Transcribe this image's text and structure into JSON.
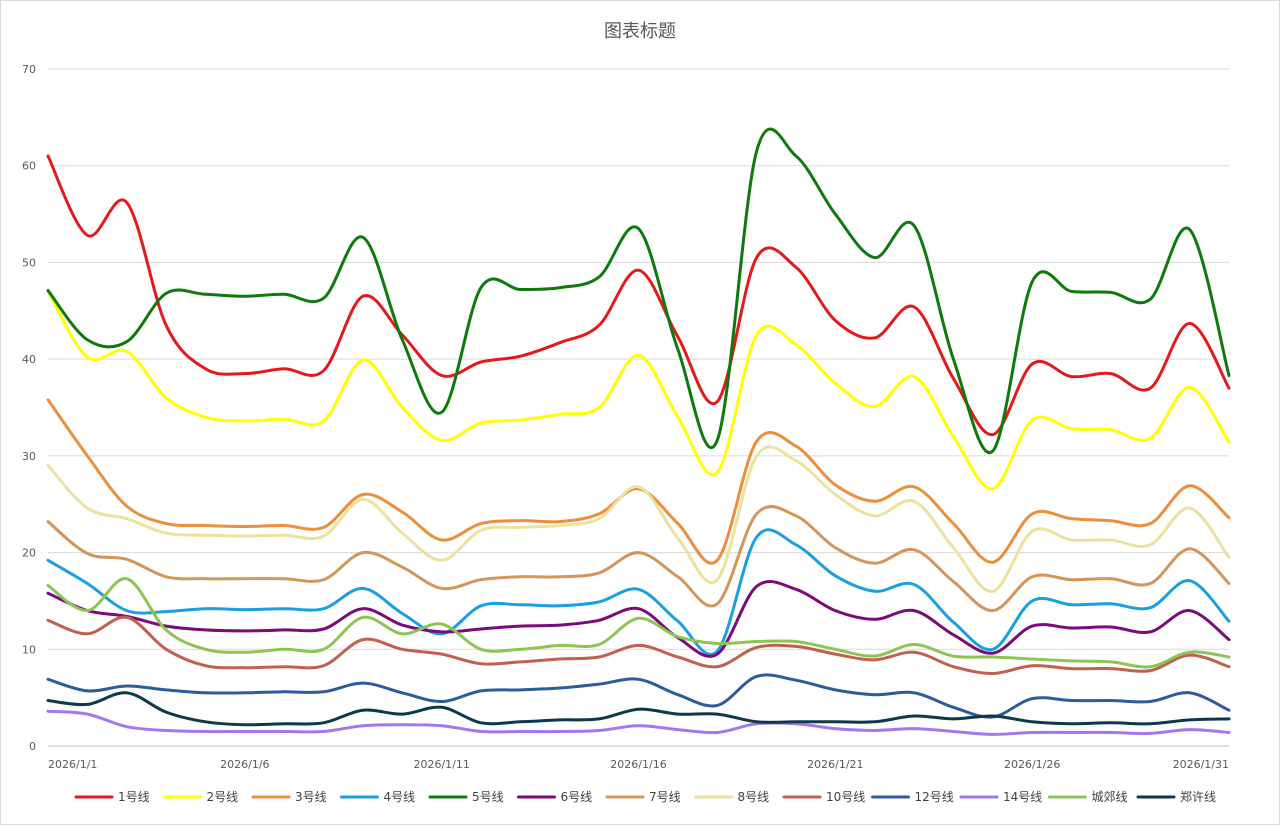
{
  "chart_data": {
    "type": "line",
    "title": "图表标题",
    "xlabel": "",
    "ylabel": "",
    "ylim": [
      0,
      70
    ],
    "yticks": [
      0,
      10,
      20,
      30,
      40,
      50,
      60,
      70
    ],
    "grid": true,
    "legend_position": "bottom",
    "smooth": true,
    "x": [
      "2026/1/1",
      "2026/1/2",
      "2026/1/3",
      "2026/1/4",
      "2026/1/5",
      "2026/1/6",
      "2026/1/7",
      "2026/1/8",
      "2026/1/9",
      "2026/1/10",
      "2026/1/11",
      "2026/1/12",
      "2026/1/13",
      "2026/1/14",
      "2026/1/15",
      "2026/1/16",
      "2026/1/17",
      "2026/1/18",
      "2026/1/19",
      "2026/1/20",
      "2026/1/21",
      "2026/1/22",
      "2026/1/23",
      "2026/1/24",
      "2026/1/25",
      "2026/1/26",
      "2026/1/27",
      "2026/1/28",
      "2026/1/29",
      "2026/1/30",
      "2026/1/31"
    ],
    "x_tick_labels": [
      "2026/1/1",
      "2026/1/6",
      "2026/1/11",
      "2026/1/16",
      "2026/1/21",
      "2026/1/26",
      "2026/1/31"
    ],
    "series": [
      {
        "name": "1号线",
        "color": "#e31a1c",
        "values": [
          61.0,
          52.8,
          56.2,
          43.5,
          39.0,
          38.5,
          39.0,
          38.8,
          46.5,
          42.5,
          38.3,
          39.7,
          40.3,
          41.7,
          43.5,
          49.2,
          42.3,
          35.6,
          50.5,
          49.5,
          44.0,
          42.2,
          45.4,
          38.0,
          32.2,
          39.5,
          38.2,
          38.5,
          37.0,
          43.7,
          37.0
        ]
      },
      {
        "name": "2号线",
        "color": "#ffff00",
        "values": [
          47.0,
          40.2,
          40.8,
          36.0,
          34.0,
          33.6,
          33.8,
          33.6,
          39.9,
          35.0,
          31.6,
          33.4,
          33.7,
          34.3,
          35.0,
          40.4,
          34.0,
          28.3,
          42.5,
          41.5,
          37.5,
          35.1,
          38.2,
          32.0,
          26.6,
          33.7,
          32.8,
          32.7,
          31.8,
          37.1,
          31.4
        ]
      },
      {
        "name": "3号线",
        "color": "#ed8e3a",
        "values": [
          35.8,
          30.0,
          24.8,
          23.0,
          22.8,
          22.7,
          22.8,
          22.6,
          26.0,
          24.2,
          21.3,
          23.0,
          23.3,
          23.2,
          24.0,
          26.6,
          23.0,
          19.2,
          31.5,
          31.0,
          27.0,
          25.3,
          26.8,
          23.0,
          19.0,
          24.0,
          23.5,
          23.3,
          23.0,
          26.9,
          23.6
        ]
      },
      {
        "name": "4号线",
        "color": "#1aa0e0",
        "values": [
          19.2,
          16.8,
          14.0,
          13.9,
          14.2,
          14.1,
          14.2,
          14.2,
          16.3,
          13.7,
          11.6,
          14.5,
          14.6,
          14.5,
          14.9,
          16.2,
          12.9,
          9.8,
          21.6,
          20.8,
          17.6,
          16.0,
          16.7,
          12.8,
          10.0,
          15.0,
          14.6,
          14.7,
          14.3,
          17.1,
          12.9
        ]
      },
      {
        "name": "5号线",
        "color": "#0e7a0e",
        "values": [
          47.1,
          42.0,
          41.8,
          46.8,
          46.7,
          46.5,
          46.7,
          46.3,
          52.6,
          42.0,
          34.5,
          47.4,
          47.2,
          47.4,
          48.5,
          53.5,
          41.0,
          31.6,
          61.5,
          61.0,
          55.0,
          50.5,
          53.8,
          40.0,
          30.5,
          48.0,
          47.0,
          46.9,
          46.2,
          53.4,
          38.3
        ]
      },
      {
        "name": "6号线",
        "color": "#7b0a7b",
        "values": [
          15.8,
          14.0,
          13.4,
          12.4,
          12.0,
          11.9,
          12.0,
          12.1,
          14.2,
          12.5,
          11.8,
          12.1,
          12.4,
          12.5,
          13.0,
          14.2,
          11.2,
          9.5,
          16.5,
          16.2,
          14.0,
          13.1,
          14.0,
          11.5,
          9.6,
          12.4,
          12.2,
          12.3,
          11.8,
          14.0,
          11.0
        ]
      },
      {
        "name": "7号线",
        "color": "#d4955a",
        "values": [
          23.2,
          19.9,
          19.3,
          17.5,
          17.3,
          17.3,
          17.3,
          17.2,
          20.0,
          18.5,
          16.3,
          17.2,
          17.5,
          17.5,
          17.9,
          20.0,
          17.5,
          14.7,
          24.0,
          23.8,
          20.5,
          18.9,
          20.3,
          17.0,
          14.0,
          17.5,
          17.2,
          17.3,
          16.8,
          20.4,
          16.8
        ]
      },
      {
        "name": "8号线",
        "color": "#ece29f",
        "values": [
          29.0,
          24.6,
          23.5,
          22.0,
          21.8,
          21.7,
          21.8,
          21.7,
          25.5,
          22.0,
          19.2,
          22.3,
          22.6,
          22.8,
          23.5,
          26.8,
          21.5,
          17.2,
          30.0,
          29.5,
          26.0,
          23.8,
          25.3,
          20.5,
          16.0,
          22.2,
          21.3,
          21.3,
          20.8,
          24.6,
          19.5
        ]
      },
      {
        "name": "10号线",
        "color": "#c0604d",
        "values": [
          13.0,
          11.6,
          13.3,
          10.0,
          8.3,
          8.1,
          8.2,
          8.3,
          11.0,
          10.0,
          9.5,
          8.5,
          8.7,
          9.0,
          9.2,
          10.4,
          9.2,
          8.2,
          10.2,
          10.3,
          9.5,
          8.9,
          9.7,
          8.2,
          7.5,
          8.3,
          8.0,
          8.0,
          7.8,
          9.4,
          8.2
        ]
      },
      {
        "name": "12号线",
        "color": "#2b5d9c",
        "values": [
          6.9,
          5.7,
          6.2,
          5.8,
          5.5,
          5.5,
          5.6,
          5.6,
          6.5,
          5.5,
          4.6,
          5.7,
          5.8,
          6.0,
          6.4,
          6.9,
          5.3,
          4.2,
          7.2,
          6.8,
          5.8,
          5.3,
          5.5,
          4.0,
          3.0,
          4.9,
          4.7,
          4.7,
          4.6,
          5.5,
          3.7
        ]
      },
      {
        "name": "14号线",
        "color": "#a277f0",
        "values": [
          3.6,
          3.3,
          2.0,
          1.6,
          1.5,
          1.5,
          1.5,
          1.5,
          2.1,
          2.2,
          2.1,
          1.5,
          1.5,
          1.5,
          1.6,
          2.1,
          1.7,
          1.4,
          2.3,
          2.3,
          1.8,
          1.6,
          1.8,
          1.5,
          1.2,
          1.4,
          1.4,
          1.4,
          1.3,
          1.7,
          1.4
        ]
      },
      {
        "name": "城郊线",
        "color": "#8ec454",
        "values": [
          16.6,
          14.0,
          17.3,
          12.0,
          10.0,
          9.7,
          10.0,
          10.0,
          13.3,
          11.6,
          12.6,
          10.0,
          10.0,
          10.4,
          10.5,
          13.2,
          11.3,
          10.6,
          10.8,
          10.8,
          10.0,
          9.3,
          10.5,
          9.3,
          9.2,
          9.0,
          8.8,
          8.7,
          8.2,
          9.7,
          9.2
        ]
      },
      {
        "name": "郑许线",
        "color": "#0d3a4a",
        "values": [
          4.7,
          4.3,
          5.5,
          3.5,
          2.5,
          2.2,
          2.3,
          2.4,
          3.7,
          3.3,
          4.0,
          2.4,
          2.5,
          2.7,
          2.8,
          3.8,
          3.3,
          3.3,
          2.5,
          2.5,
          2.5,
          2.5,
          3.1,
          2.8,
          3.1,
          2.5,
          2.3,
          2.4,
          2.3,
          2.7,
          2.8
        ]
      }
    ]
  }
}
